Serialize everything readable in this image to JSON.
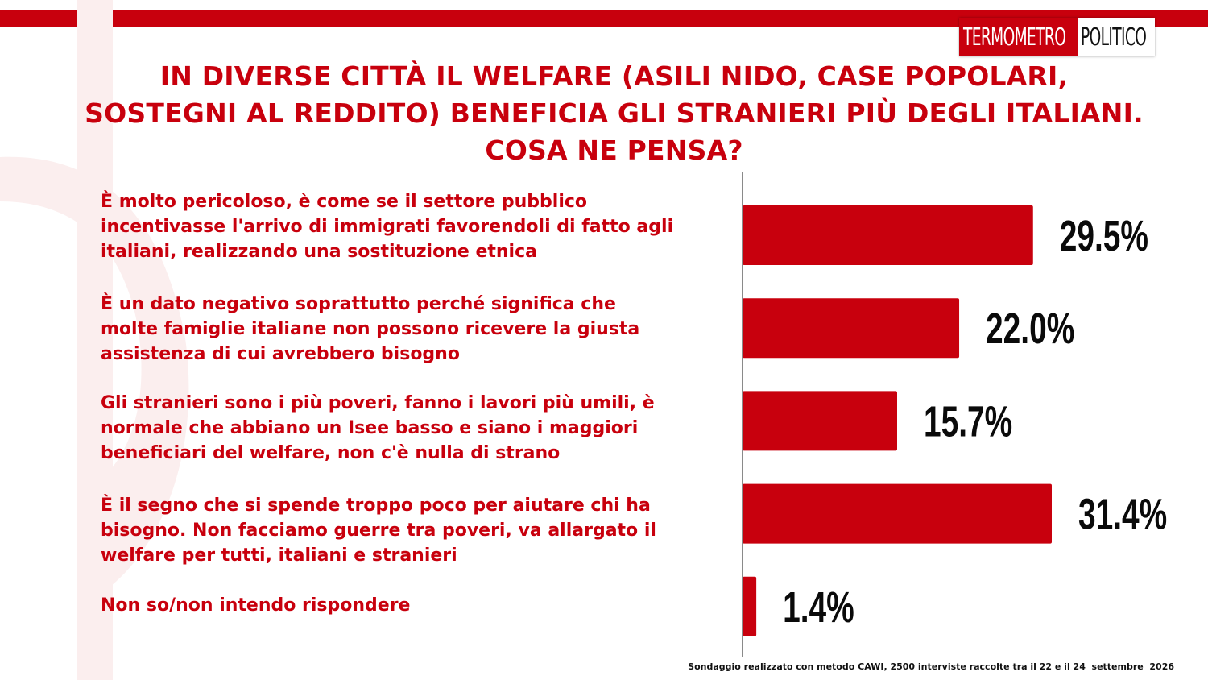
{
  "logo": {
    "part1": "TERMOMETRO",
    "part2": "POLITICO"
  },
  "title_lines": [
    "IN DIVERSE CITTÀ IL WELFARE (ASILI NIDO, CASE POPOLARI,",
    "SOSTEGNI AL REDDITO) BENEFICIA GLI STRANIERI PIÙ DEGLI ITALIANI.",
    "COSA NE PENSA?"
  ],
  "chart_data": {
    "type": "bar",
    "orientation": "horizontal",
    "categories": [
      "È molto pericoloso, è come se il settore pubblico\nincentivasse l'arrivo di immigrati favorendoli di fatto agli\nitaliani, realizzando una sostituzione etnica",
      "È un dato negativo soprattutto perché significa che\nmolte famiglie italiane non possono ricevere la giusta\nassistenza di cui avrebbero bisogno",
      "Gli stranieri sono i più poveri, fanno i lavori più umili, è\nnormale che abbiano un Isee basso e siano i maggiori\nbeneficiari del welfare, non c'è nulla di strano",
      "È il segno che si spende troppo poco per aiutare chi ha\nbisogno. Non facciamo guerre tra poveri, va allargato il\nwelfare per tutti, italiani e stranieri",
      "Non so/non intendo rispondere"
    ],
    "values": [
      29.5,
      22.0,
      15.7,
      31.4,
      1.4
    ],
    "value_labels": [
      "29.5%",
      "22.0%",
      "15.7%",
      "31.4%",
      "1.4%"
    ],
    "xlim": [
      0,
      31.4
    ],
    "grid": false,
    "legend": "none",
    "colors": {
      "bar": "#c8000d",
      "label_text": "#c8000d",
      "value_text": "#0a0a0a"
    }
  },
  "footnote": "Sondaggio realizzato con metodo CAWI, 2500 interviste raccolte tra il 22 e il 24  settembre  2026"
}
